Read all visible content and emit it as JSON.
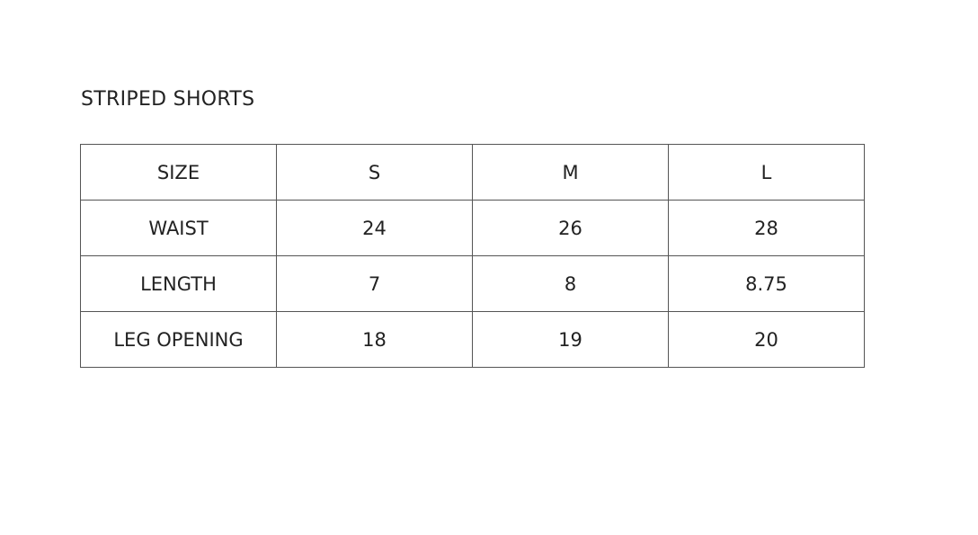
{
  "title": "STRIPED SHORTS",
  "table": {
    "rows": [
      [
        "SIZE",
        "S",
        "M",
        "L"
      ],
      [
        "WAIST",
        "24",
        "26",
        "28"
      ],
      [
        "LENGTH",
        "7",
        "8",
        "8.75"
      ],
      [
        "LEG OPENING",
        "18",
        "19",
        "20"
      ]
    ]
  }
}
